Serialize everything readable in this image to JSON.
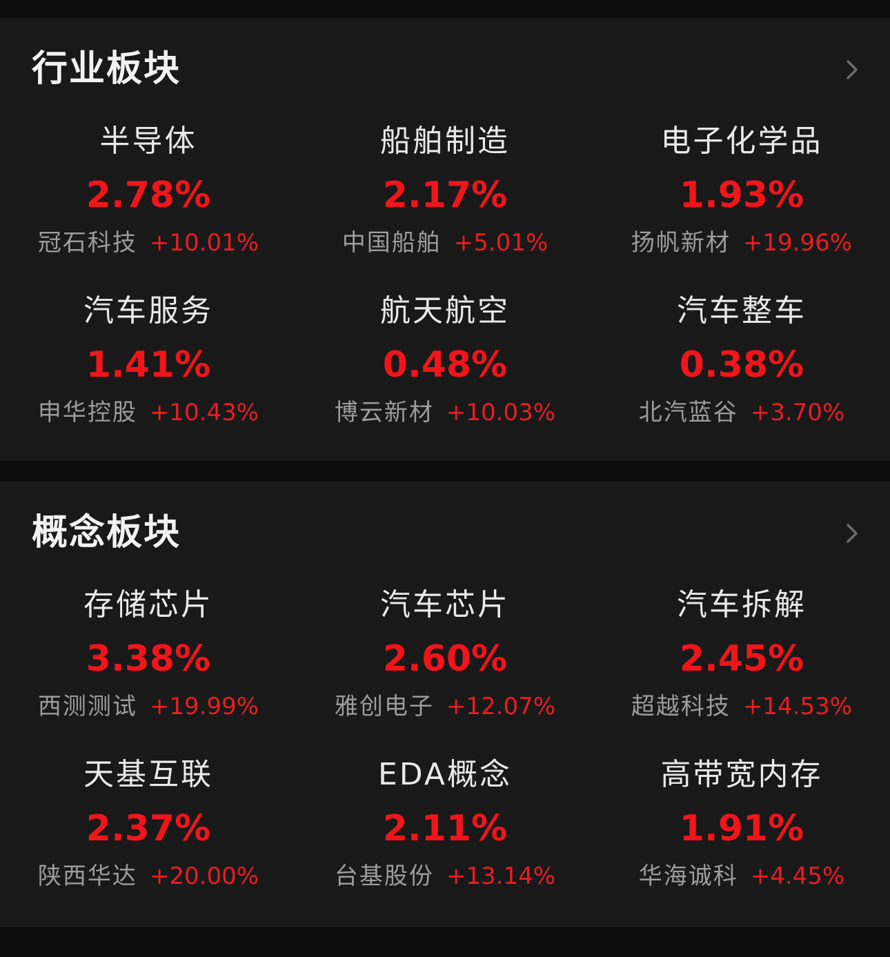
{
  "sections": [
    {
      "title": "行业板块",
      "more_icon": "chevron-right-icon",
      "items": [
        {
          "name": "半导体",
          "pct": "2.78%",
          "lead_stock": "冠石科技",
          "lead_pct": "+10.01%"
        },
        {
          "name": "船舶制造",
          "pct": "2.17%",
          "lead_stock": "中国船舶",
          "lead_pct": "+5.01%"
        },
        {
          "name": "电子化学品",
          "pct": "1.93%",
          "lead_stock": "扬帆新材",
          "lead_pct": "+19.96%"
        },
        {
          "name": "汽车服务",
          "pct": "1.41%",
          "lead_stock": "申华控股",
          "lead_pct": "+10.43%"
        },
        {
          "name": "航天航空",
          "pct": "0.48%",
          "lead_stock": "博云新材",
          "lead_pct": "+10.03%"
        },
        {
          "name": "汽车整车",
          "pct": "0.38%",
          "lead_stock": "北汽蓝谷",
          "lead_pct": "+3.70%"
        }
      ]
    },
    {
      "title": "概念板块",
      "more_icon": "chevron-right-icon",
      "items": [
        {
          "name": "存储芯片",
          "pct": "3.38%",
          "lead_stock": "西测测试",
          "lead_pct": "+19.99%"
        },
        {
          "name": "汽车芯片",
          "pct": "2.60%",
          "lead_stock": "雅创电子",
          "lead_pct": "+12.07%"
        },
        {
          "name": "汽车拆解",
          "pct": "2.45%",
          "lead_stock": "超越科技",
          "lead_pct": "+14.53%"
        },
        {
          "name": "天基互联",
          "pct": "2.37%",
          "lead_stock": "陕西华达",
          "lead_pct": "+20.00%"
        },
        {
          "name": "EDA概念",
          "pct": "2.11%",
          "lead_stock": "台基股份",
          "lead_pct": "+13.14%"
        },
        {
          "name": "高带宽内存",
          "pct": "1.91%",
          "lead_stock": "华海诚科",
          "lead_pct": "+4.45%"
        }
      ]
    }
  ],
  "colors": {
    "background": "#0c0c0d",
    "panel": "#19191a",
    "up_red": "#f0151a",
    "title_text": "#f2f2f2",
    "muted_text": "#9c9c9c"
  }
}
